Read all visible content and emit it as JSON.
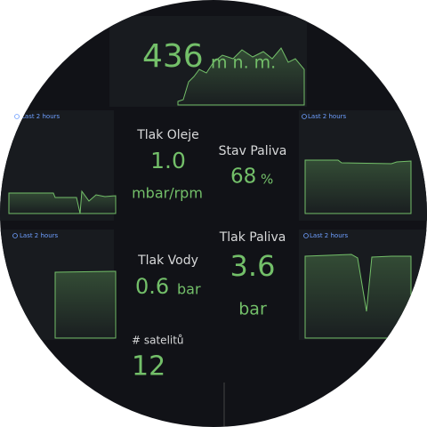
{
  "header": {
    "value": "436",
    "unit": "m n. m."
  },
  "time_labels": [
    "Last 2 hours",
    "Last 2 hours",
    "Last 2 hours",
    "Last 2 hours"
  ],
  "stats": [
    {
      "title": "Tlak Oleje",
      "value": "1.0",
      "unit": "mbar/rpm"
    },
    {
      "title": "Stav Paliva",
      "value": "68",
      "unit": "%"
    },
    {
      "title": "Tlak Vody",
      "value": "0.6",
      "unit": "bar"
    },
    {
      "title": "Tlak Paliva",
      "value": "3.6",
      "unit": "bar"
    },
    {
      "title": "# satelitů",
      "value": "12"
    }
  ]
}
